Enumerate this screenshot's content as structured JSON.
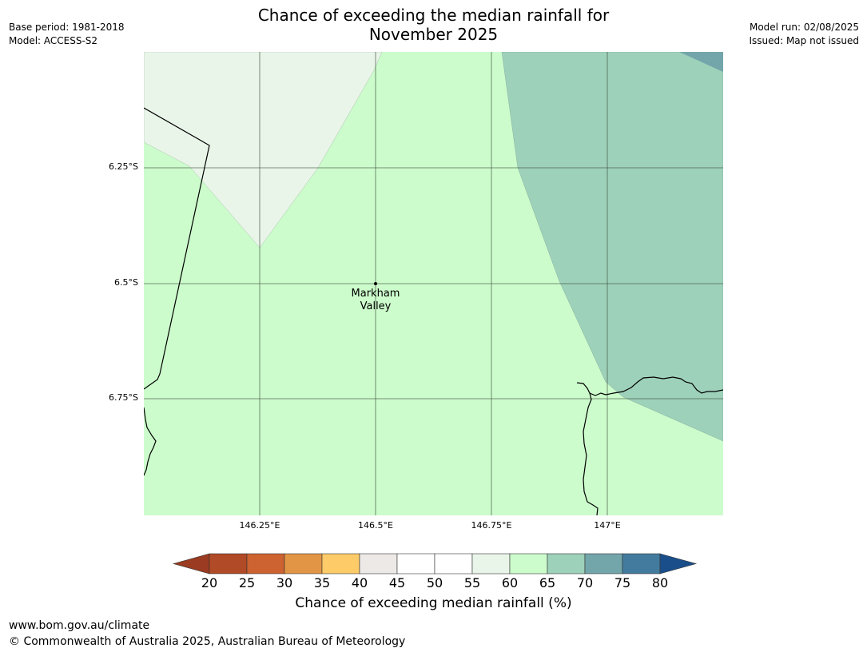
{
  "header": {
    "title_line1": "Chance of exceeding the median rainfall for",
    "title_line2": "November 2025",
    "base_period": "Base period: 1981-2018",
    "model": "Model: ACCESS-S2",
    "model_run": "Model run: 02/08/2025",
    "issued": "Issued: Map not issued"
  },
  "map": {
    "lat_labels": [
      "6.25°S",
      "6.5°S",
      "6.75°S"
    ],
    "lon_labels": [
      "146.25°E",
      "146.5°E",
      "146.75°E",
      "147°E"
    ],
    "place": {
      "name_line1": "Markham",
      "name_line2": "Valley"
    },
    "colors": {
      "band_55_60": "#e9f5e9",
      "band_60_65": "#ccfccc",
      "band_65_70": "#9ed1ba",
      "band_70_75": "#72a6aa",
      "gridline": "#3a4a3a",
      "coast": "#000000"
    }
  },
  "colorbar": {
    "title": "Chance of exceeding median rainfall (%)",
    "ticks": [
      "20",
      "25",
      "30",
      "35",
      "40",
      "45",
      "50",
      "55",
      "60",
      "65",
      "70",
      "75",
      "80"
    ],
    "below_color": "#9a3b22",
    "above_color": "#1a4e8a",
    "colors": [
      "#b14a26",
      "#cd6331",
      "#e29645",
      "#fdcb67",
      "#ede9e6",
      "#ffffff",
      "#ffffff",
      "#e9f5e9",
      "#ccfccc",
      "#9ed1ba",
      "#72a6aa",
      "#437b9e"
    ]
  },
  "footer": {
    "url": "www.bom.gov.au/climate",
    "copyright": "© Commonwealth of Australia 2025, Australian Bureau of Meteorology"
  }
}
